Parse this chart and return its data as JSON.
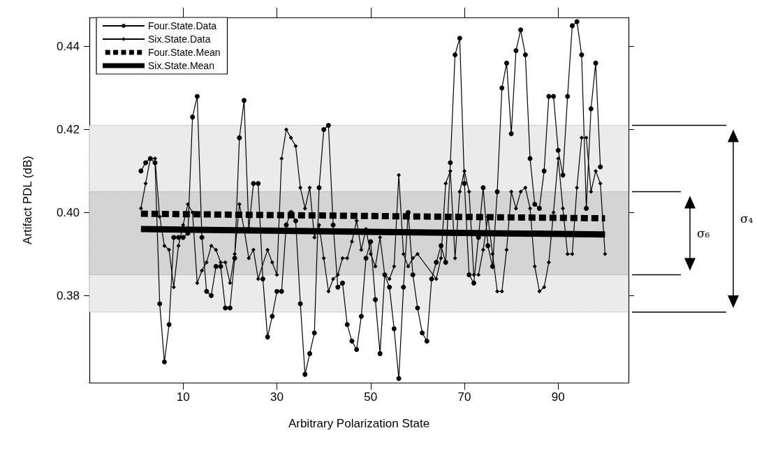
{
  "chart_data": {
    "type": "line",
    "xlabel": "Arbitrary Polarization State",
    "ylabel": "Artifact PDL (dB)",
    "xlim": [
      -10,
      105
    ],
    "xticks": [
      10,
      30,
      50,
      70,
      90
    ],
    "ylim": [
      0.359,
      0.447
    ],
    "yticks": [
      {
        "value": 0.38,
        "label": "0.38"
      },
      {
        "value": 0.4,
        "label": "0.40"
      },
      {
        "value": 0.42,
        "label": "0.42"
      },
      {
        "value": 0.44,
        "label": "0.44"
      }
    ],
    "legend": "top left",
    "annotations": [
      "σ₄",
      "σ₆"
    ],
    "bands": [
      {
        "axis": "y",
        "from": 0.376,
        "to": 0.421,
        "color": "#ebebeb"
      },
      {
        "axis": "y",
        "from": 0.385,
        "to": 0.405,
        "color": "#d4d4d4"
      }
    ],
    "series": [
      {
        "name": "Four.State.Data",
        "color": "#000000",
        "marker": "circle",
        "line_style": "solid",
        "x": [
          1,
          2,
          3,
          4,
          5,
          6,
          7,
          8,
          9,
          10,
          11,
          12,
          13,
          14,
          15,
          16,
          17,
          18,
          19,
          20,
          21,
          22,
          23,
          24,
          25,
          26,
          27,
          28,
          29,
          30,
          31,
          32,
          33,
          34,
          35,
          36,
          37,
          38,
          39,
          40,
          41,
          42,
          43,
          44,
          45,
          46,
          47,
          48,
          49,
          50,
          51,
          52,
          53,
          54,
          55,
          56,
          57,
          58,
          59,
          60,
          61,
          62,
          63,
          64,
          65,
          66,
          67,
          68,
          69,
          70,
          71,
          72,
          73,
          74,
          75,
          76,
          77,
          78,
          79,
          80,
          81,
          82,
          83,
          84,
          85,
          86,
          87,
          88,
          89,
          90,
          91,
          92,
          93,
          94,
          95,
          96,
          97,
          98,
          99
        ],
        "values": [
          0.41,
          0.412,
          0.413,
          0.412,
          0.378,
          0.364,
          0.373,
          0.394,
          0.394,
          0.394,
          0.395,
          0.423,
          0.428,
          0.394,
          0.381,
          0.38,
          0.387,
          0.387,
          0.377,
          0.377,
          0.389,
          0.418,
          0.427,
          0.396,
          0.407,
          0.407,
          0.384,
          0.37,
          0.375,
          0.381,
          0.381,
          0.397,
          0.4,
          0.398,
          0.378,
          0.361,
          0.366,
          0.371,
          0.406,
          0.42,
          0.421,
          0.397,
          0.382,
          0.383,
          0.373,
          0.369,
          0.367,
          0.375,
          0.389,
          0.393,
          0.379,
          0.366,
          0.385,
          0.382,
          0.372,
          0.36,
          0.382,
          0.4,
          0.385,
          0.377,
          0.371,
          0.369,
          0.384,
          0.388,
          0.392,
          0.388,
          0.412,
          0.438,
          0.442,
          0.407,
          0.385,
          0.383,
          0.394,
          0.406,
          0.392,
          0.387,
          0.405,
          0.43,
          0.436,
          0.419,
          0.439,
          0.444,
          0.438,
          0.413,
          0.402,
          0.401,
          0.41,
          0.428,
          0.428,
          0.415,
          0.409,
          0.428,
          0.445,
          0.446,
          0.438,
          0.401,
          0.425,
          0.436,
          0.411
        ]
      },
      {
        "name": "Six.State.Data",
        "color": "#000000",
        "marker": "diamond",
        "line_style": "solid",
        "x": [
          1,
          2,
          3,
          4,
          5,
          6,
          7,
          8,
          9,
          10,
          11,
          12,
          13,
          14,
          15,
          16,
          17,
          18,
          19,
          20,
          21,
          22,
          23,
          24,
          25,
          26,
          28,
          29,
          30,
          31,
          32,
          33,
          34,
          35,
          36,
          37,
          38,
          39,
          40,
          41,
          42,
          43,
          44,
          45,
          46,
          47,
          48,
          49,
          50,
          51,
          52,
          53,
          54,
          55,
          56,
          57,
          58,
          59,
          60,
          64,
          65,
          66,
          67,
          68,
          69,
          70,
          71,
          72,
          73,
          74,
          75,
          76,
          77,
          78,
          79,
          80,
          81,
          82,
          83,
          84,
          85,
          86,
          87,
          88,
          89,
          90,
          91,
          92,
          93,
          94,
          95,
          96,
          97,
          98,
          99,
          100
        ],
        "values": [
          0.401,
          0.407,
          0.413,
          0.413,
          0.399,
          0.392,
          0.391,
          0.382,
          0.392,
          0.397,
          0.402,
          0.4,
          0.383,
          0.386,
          0.388,
          0.392,
          0.391,
          0.388,
          0.388,
          0.383,
          0.39,
          0.402,
          0.396,
          0.389,
          0.391,
          0.384,
          0.391,
          0.388,
          0.385,
          0.413,
          0.42,
          0.418,
          0.416,
          0.406,
          0.401,
          0.406,
          0.394,
          0.397,
          0.389,
          0.381,
          0.384,
          0.385,
          0.389,
          0.389,
          0.393,
          0.398,
          0.391,
          0.396,
          0.39,
          0.387,
          0.394,
          0.385,
          0.384,
          0.387,
          0.409,
          0.39,
          0.387,
          0.389,
          0.39,
          0.384,
          0.389,
          0.407,
          0.41,
          0.389,
          0.405,
          0.41,
          0.405,
          0.385,
          0.385,
          0.391,
          0.399,
          0.39,
          0.381,
          0.381,
          0.391,
          0.405,
          0.401,
          0.405,
          0.406,
          0.401,
          0.387,
          0.381,
          0.382,
          0.388,
          0.4,
          0.413,
          0.401,
          0.39,
          0.39,
          0.406,
          0.418,
          0.418,
          0.405,
          0.41,
          0.407,
          0.39
        ]
      },
      {
        "name": "Four.State.Mean",
        "color": "#000000",
        "marker": "none",
        "line_style": "dashed",
        "x": [
          1,
          100
        ],
        "values": [
          0.3997,
          0.3986
        ]
      },
      {
        "name": "Six.State.Mean",
        "color": "#000000",
        "marker": "none",
        "line_style": "solid",
        "x": [
          1,
          100
        ],
        "values": [
          0.396,
          0.3947
        ]
      }
    ]
  }
}
